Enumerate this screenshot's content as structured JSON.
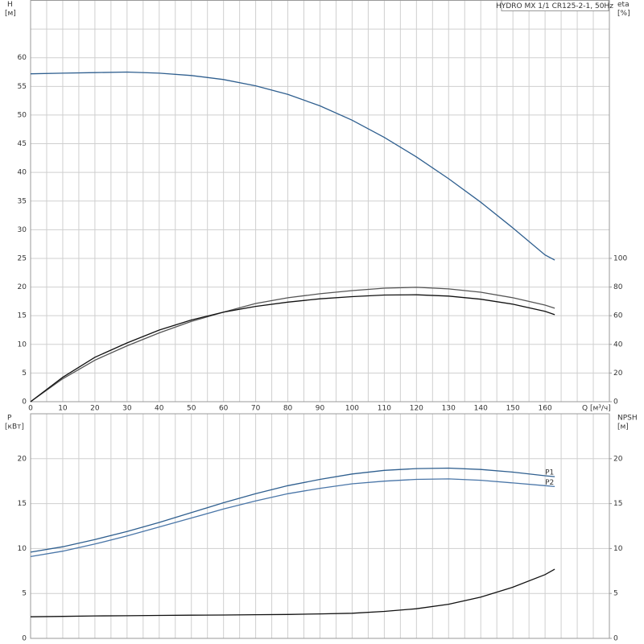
{
  "chart_data": [
    {
      "type": "line",
      "title": "HYDRO MX 1/1 CR125-2-1, 50Hz",
      "y_label": "H",
      "y_unit": "[м]",
      "y2_label": "eta",
      "y2_unit": "[%]",
      "x_label": "Q [м³/ч]",
      "x": [
        0,
        10,
        20,
        30,
        40,
        50,
        60,
        70,
        80,
        90,
        100,
        110,
        120,
        130,
        140,
        150,
        160,
        163
      ],
      "xlim": [
        0,
        180
      ],
      "xticks": [
        0,
        10,
        20,
        30,
        40,
        50,
        60,
        70,
        80,
        90,
        100,
        110,
        120,
        130,
        140,
        150,
        160
      ],
      "ylim": [
        0,
        70
      ],
      "yticks": [
        0,
        5,
        10,
        15,
        20,
        25,
        30,
        35,
        40,
        45,
        50,
        55,
        60
      ],
      "y2lim": [
        0,
        280
      ],
      "y2ticks": [
        0,
        20,
        40,
        60,
        80,
        100
      ],
      "grid": true,
      "series": [
        {
          "color": "#2f5f8f",
          "values": [
            57.2,
            57.3,
            57.4,
            57.5,
            57.3,
            56.9,
            56.2,
            55.1,
            53.6,
            51.6,
            49.1,
            46.1,
            42.7,
            38.9,
            34.8,
            30.3,
            25.6,
            24.7
          ]
        },
        {
          "color": "#555555",
          "axis": "y2",
          "values": [
            0,
            16,
            29,
            39,
            48,
            56,
            62.5,
            68.5,
            72.5,
            75.3,
            77.5,
            79.2,
            79.8,
            78.7,
            76.4,
            72.5,
            67.4,
            65.2
          ]
        },
        {
          "color": "#111111",
          "axis": "y2",
          "values": [
            0,
            17,
            31,
            41,
            50,
            57,
            62.5,
            66.5,
            69.5,
            71.8,
            73.3,
            74.4,
            74.6,
            73.7,
            71.5,
            68,
            63,
            60.7
          ]
        }
      ]
    },
    {
      "type": "line",
      "y_label": "P",
      "y_unit": "[кВт]",
      "y2_label": "NPSH",
      "y2_unit": "[м]",
      "x": [
        0,
        10,
        20,
        30,
        40,
        50,
        60,
        70,
        80,
        90,
        100,
        110,
        120,
        130,
        140,
        150,
        160,
        163
      ],
      "xlim": [
        0,
        180
      ],
      "ylim": [
        0,
        25
      ],
      "yticks": [
        0,
        5,
        10,
        15,
        20
      ],
      "y2lim": [
        0,
        25
      ],
      "y2ticks": [
        0,
        5,
        10,
        15,
        20
      ],
      "grid": true,
      "series": [
        {
          "name": "P1",
          "color": "#2f5f8f",
          "values": [
            9.6,
            10.2,
            11,
            11.9,
            12.9,
            14,
            15.1,
            16.1,
            17,
            17.7,
            18.3,
            18.7,
            18.9,
            18.95,
            18.8,
            18.5,
            18.1,
            18.0
          ]
        },
        {
          "name": "P2",
          "color": "#4a76a8",
          "values": [
            9.1,
            9.7,
            10.5,
            11.4,
            12.4,
            13.4,
            14.4,
            15.3,
            16.1,
            16.7,
            17.2,
            17.5,
            17.7,
            17.75,
            17.6,
            17.3,
            17.0,
            16.9
          ]
        },
        {
          "color": "#111111",
          "axis": "y2",
          "values": [
            2.4,
            2.45,
            2.5,
            2.52,
            2.55,
            2.58,
            2.6,
            2.63,
            2.66,
            2.72,
            2.8,
            3.0,
            3.3,
            3.8,
            4.6,
            5.7,
            7.1,
            7.7
          ]
        }
      ]
    }
  ]
}
